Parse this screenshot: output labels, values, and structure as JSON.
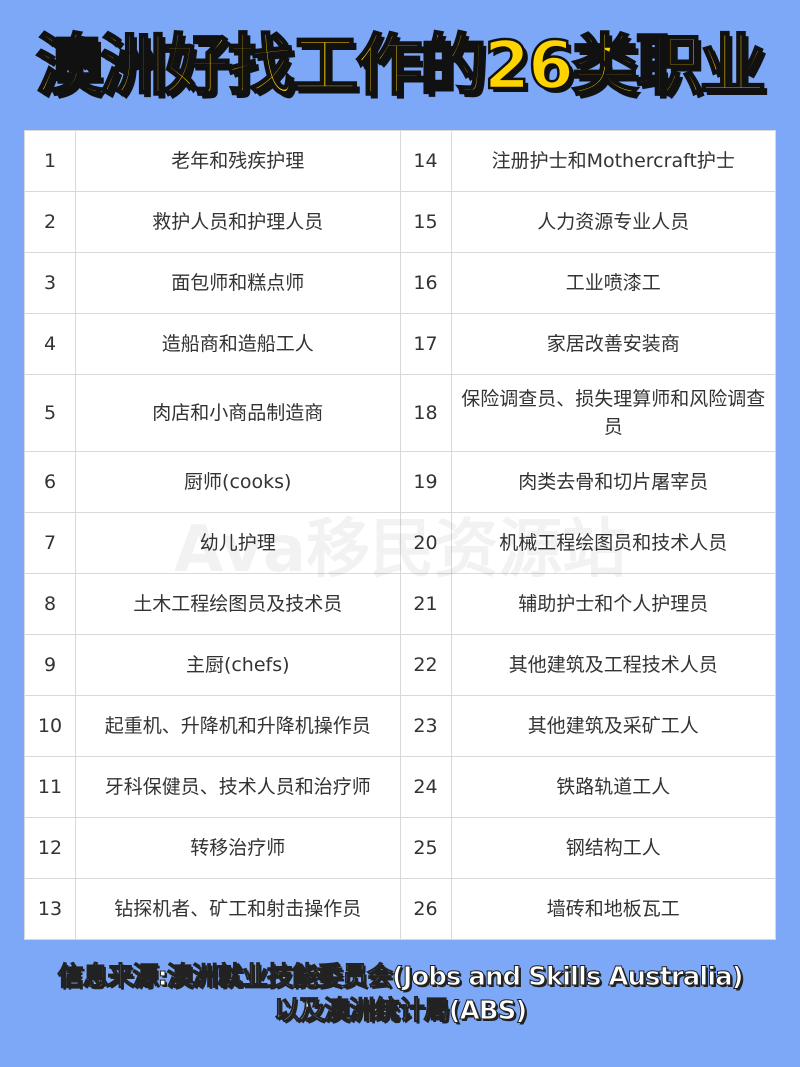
{
  "title": "澳洲好找工作的26类职业",
  "watermark": "Ava移民资源站",
  "rows": [
    {
      "n1": "1",
      "j1": "老年和残疾护理",
      "n2": "14",
      "j2": "注册护士和Mothercraft护士"
    },
    {
      "n1": "2",
      "j1": "救护人员和护理人员",
      "n2": "15",
      "j2": "人力资源专业人员"
    },
    {
      "n1": "3",
      "j1": "面包师和糕点师",
      "n2": "16",
      "j2": "工业喷漆工"
    },
    {
      "n1": "4",
      "j1": "造船商和造船工人",
      "n2": "17",
      "j2": "家居改善安装商"
    },
    {
      "n1": "5",
      "j1": "肉店和小商品制造商",
      "n2": "18",
      "j2": "保险调查员、损失理算师和风险调查员"
    },
    {
      "n1": "6",
      "j1": "厨师(cooks)",
      "n2": "19",
      "j2": "肉类去骨和切片屠宰员"
    },
    {
      "n1": "7",
      "j1": "幼儿护理",
      "n2": "20",
      "j2": "机械工程绘图员和技术人员"
    },
    {
      "n1": "8",
      "j1": "土木工程绘图员及技术员",
      "n2": "21",
      "j2": "辅助护士和个人护理员"
    },
    {
      "n1": "9",
      "j1": "主厨(chefs)",
      "n2": "22",
      "j2": "其他建筑及工程技术人员"
    },
    {
      "n1": "10",
      "j1": "起重机、升降机和升降机操作员",
      "n2": "23",
      "j2": "其他建筑及采矿工人"
    },
    {
      "n1": "11",
      "j1": "牙科保健员、技术人员和治疗师",
      "n2": "24",
      "j2": "铁路轨道工人"
    },
    {
      "n1": "12",
      "j1": "转移治疗师",
      "n2": "25",
      "j2": "钢结构工人"
    },
    {
      "n1": "13",
      "j1": "钻探机者、矿工和射击操作员",
      "n2": "26",
      "j2": "墙砖和地板瓦工"
    }
  ],
  "footer": {
    "line1": "信息来源:澳洲就业技能委员会(Jobs and Skills Australia)",
    "line2": "以及澳洲统计局(ABS)"
  },
  "colors": {
    "background": "#7da8f8",
    "title": "#ffd400"
  }
}
